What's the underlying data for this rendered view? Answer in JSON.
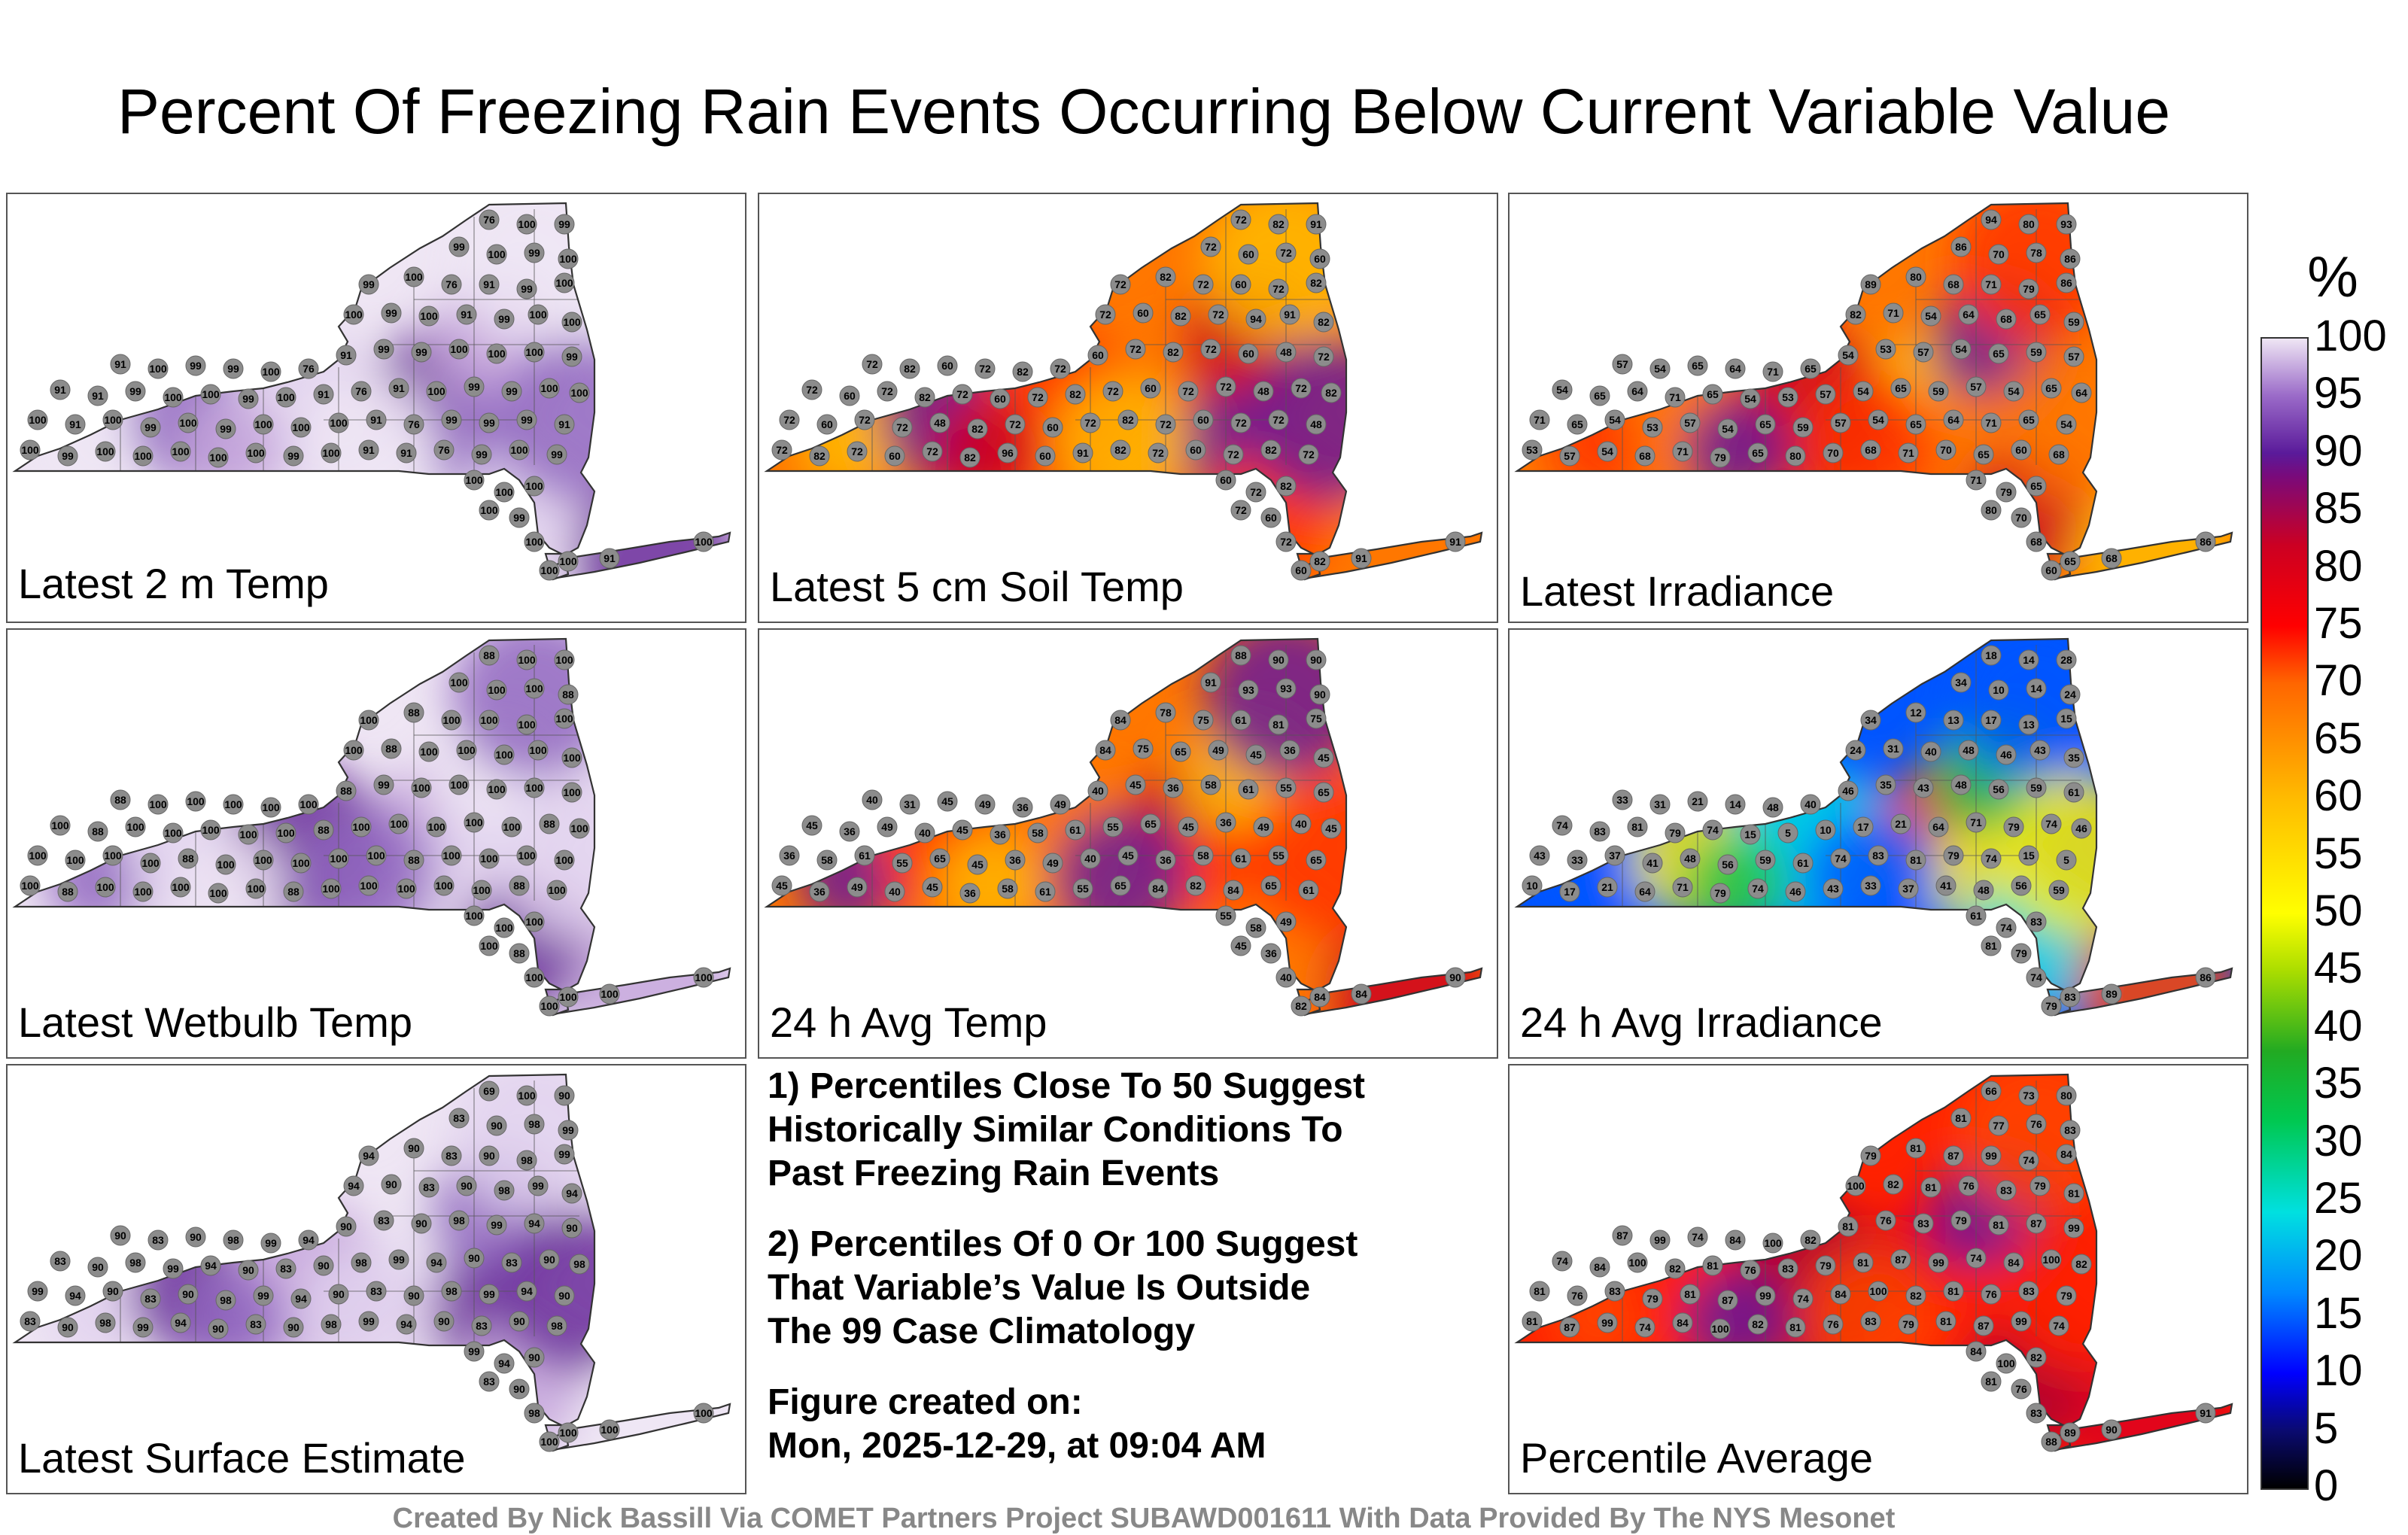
{
  "title": "Percent Of Freezing Rain Events Occurring Below Current Variable Value",
  "panels": [
    {
      "label": "Latest 2 m Temp",
      "scheme": "purple",
      "values": [
        76,
        100,
        99,
        99,
        100,
        99,
        100,
        99,
        100,
        76,
        91,
        99,
        100,
        100,
        99,
        100,
        91,
        99,
        100,
        100,
        91,
        100,
        99,
        99,
        100,
        76,
        91,
        99,
        99,
        100,
        100,
        100,
        99,
        91,
        91,
        99,
        100,
        100,
        99,
        100,
        91,
        76,
        91,
        100,
        99,
        99,
        100,
        100,
        100,
        91,
        100,
        99,
        100,
        99,
        100,
        100,
        100,
        91,
        76,
        99,
        99,
        99,
        91,
        100,
        99,
        100,
        100,
        100,
        100,
        100,
        99,
        100,
        91,
        91,
        76,
        99,
        100,
        99,
        100,
        100,
        100,
        100,
        99,
        100,
        100,
        100
      ],
      "island_values": [
        100,
        100,
        91,
        100
      ]
    },
    {
      "label": "Latest 5 cm Soil Temp",
      "scheme": "warm",
      "values": [
        72,
        82,
        91,
        72,
        60,
        72,
        60,
        72,
        82,
        72,
        60,
        72,
        82,
        72,
        60,
        82,
        72,
        94,
        91,
        82,
        72,
        82,
        60,
        72,
        82,
        72,
        60,
        72,
        82,
        72,
        60,
        48,
        72,
        72,
        60,
        72,
        82,
        72,
        60,
        72,
        82,
        72,
        60,
        72,
        72,
        48,
        72,
        82,
        72,
        60,
        72,
        72,
        48,
        82,
        72,
        60,
        72,
        82,
        72,
        60,
        72,
        72,
        48,
        72,
        82,
        72,
        60,
        72,
        82,
        96,
        60,
        91,
        82,
        72,
        60,
        72,
        82,
        72,
        60,
        72,
        82,
        72,
        60,
        72,
        82,
        72
      ],
      "island_values": [
        60,
        82,
        91,
        91
      ]
    },
    {
      "label": "Latest Irradiance",
      "scheme": "warm",
      "values": [
        94,
        80,
        93,
        86,
        70,
        78,
        86,
        89,
        80,
        68,
        71,
        79,
        86,
        82,
        71,
        54,
        64,
        68,
        65,
        59,
        57,
        54,
        65,
        64,
        71,
        65,
        54,
        53,
        57,
        54,
        65,
        59,
        57,
        54,
        65,
        64,
        71,
        65,
        54,
        53,
        57,
        54,
        65,
        59,
        57,
        54,
        65,
        64,
        71,
        65,
        54,
        53,
        57,
        54,
        65,
        59,
        57,
        54,
        65,
        64,
        71,
        65,
        54,
        53,
        57,
        54,
        68,
        71,
        79,
        65,
        80,
        70,
        68,
        71,
        70,
        65,
        60,
        68,
        71,
        79,
        65,
        80,
        70,
        68,
        71,
        70
      ],
      "island_values": [
        60,
        65,
        68,
        86
      ]
    },
    {
      "label": "Latest Wetbulb Temp",
      "scheme": "purple",
      "values": [
        88,
        100,
        100,
        100,
        100,
        100,
        88,
        100,
        88,
        100,
        100,
        100,
        100,
        100,
        88,
        100,
        100,
        100,
        100,
        100,
        88,
        100,
        100,
        100,
        100,
        100,
        88,
        99,
        100,
        100,
        100,
        100,
        100,
        100,
        88,
        100,
        100,
        100,
        100,
        100,
        88,
        100,
        100,
        100,
        100,
        100,
        88,
        100,
        100,
        100,
        100,
        100,
        88,
        100,
        100,
        100,
        100,
        100,
        88,
        100,
        100,
        100,
        100,
        100,
        88,
        100,
        100,
        100,
        100,
        100,
        88,
        100,
        100,
        100,
        100,
        100,
        88,
        100,
        100,
        100,
        100,
        100,
        88,
        100,
        100,
        100
      ],
      "island_values": [
        100,
        100,
        100,
        100
      ]
    },
    {
      "label": "24 h Avg Temp",
      "scheme": "warm",
      "values": [
        88,
        90,
        90,
        91,
        93,
        93,
        90,
        84,
        78,
        75,
        61,
        81,
        75,
        84,
        75,
        65,
        49,
        45,
        36,
        45,
        40,
        31,
        45,
        49,
        36,
        49,
        40,
        45,
        36,
        58,
        61,
        55,
        65,
        45,
        36,
        49,
        40,
        45,
        36,
        58,
        61,
        55,
        65,
        45,
        36,
        49,
        40,
        45,
        36,
        58,
        61,
        55,
        65,
        45,
        36,
        49,
        40,
        45,
        36,
        58,
        61,
        55,
        65,
        45,
        36,
        49,
        40,
        45,
        36,
        58,
        61,
        55,
        65,
        84,
        82,
        84,
        65,
        61,
        55,
        58,
        49,
        45,
        36,
        40,
        45,
        49
      ],
      "island_values": [
        82,
        84,
        84,
        90
      ]
    },
    {
      "label": "24 h Avg Irradiance",
      "scheme": "full",
      "values": [
        18,
        14,
        28,
        34,
        10,
        14,
        24,
        34,
        12,
        13,
        17,
        13,
        15,
        24,
        31,
        40,
        48,
        46,
        43,
        35,
        33,
        31,
        21,
        14,
        48,
        40,
        46,
        35,
        43,
        48,
        56,
        59,
        61,
        74,
        83,
        81,
        79,
        74,
        15,
        5,
        10,
        17,
        21,
        64,
        71,
        79,
        74,
        46,
        43,
        33,
        37,
        41,
        48,
        56,
        59,
        61,
        74,
        83,
        81,
        79,
        74,
        15,
        5,
        10,
        17,
        21,
        64,
        71,
        79,
        74,
        46,
        43,
        33,
        37,
        41,
        48,
        56,
        59,
        61,
        74,
        83,
        81,
        79,
        74,
        14,
        79
      ],
      "island_values": [
        79,
        83,
        89,
        86
      ]
    },
    {
      "label": "Latest Surface Estimate",
      "scheme": "purple",
      "values": [
        69,
        100,
        90,
        83,
        90,
        98,
        99,
        94,
        90,
        83,
        90,
        98,
        99,
        94,
        90,
        83,
        90,
        98,
        99,
        94,
        90,
        83,
        90,
        98,
        99,
        94,
        90,
        83,
        90,
        98,
        99,
        94,
        90,
        83,
        90,
        98,
        99,
        94,
        90,
        83,
        90,
        98,
        99,
        94,
        90,
        83,
        90,
        98,
        99,
        94,
        90,
        83,
        90,
        98,
        99,
        94,
        90,
        83,
        90,
        98,
        99,
        94,
        90,
        83,
        90,
        98,
        99,
        94,
        90,
        83,
        90,
        98,
        99,
        94,
        90,
        83,
        90,
        98,
        99,
        94,
        90,
        83,
        90,
        98,
        99,
        94
      ],
      "island_values": [
        100,
        100,
        100,
        100
      ]
    },
    {
      "label": "Percentile Average",
      "scheme": "red",
      "values": [
        66,
        73,
        80,
        81,
        77,
        76,
        83,
        79,
        81,
        87,
        99,
        74,
        84,
        100,
        82,
        81,
        76,
        83,
        79,
        81,
        87,
        99,
        74,
        84,
        100,
        82,
        81,
        76,
        83,
        79,
        81,
        87,
        99,
        74,
        84,
        100,
        82,
        81,
        76,
        83,
        79,
        81,
        87,
        99,
        74,
        84,
        100,
        82,
        81,
        76,
        83,
        79,
        81,
        87,
        99,
        74,
        84,
        100,
        82,
        81,
        76,
        83,
        79,
        81,
        87,
        99,
        74,
        84,
        100,
        82,
        81,
        76,
        83,
        79,
        81,
        87,
        99,
        74,
        84,
        100,
        82,
        81,
        76,
        83,
        79,
        81
      ],
      "island_values": [
        88,
        89,
        90,
        91
      ]
    }
  ],
  "notes": [
    [
      "1) Percentiles Close To 50 Suggest",
      "Historically Similar Conditions To",
      "Past Freezing Rain Events"
    ],
    [
      "2) Percentiles Of 0 Or 100 Suggest",
      "That Variable’s Value Is Outside",
      "The 99 Case Climatology"
    ],
    [
      "Figure created on:",
      "Mon, 2025-12-29, at 09:04 AM"
    ]
  ],
  "colorbar": {
    "unit": "%",
    "ticks": [
      "100",
      "95",
      "90",
      "85",
      "80",
      "75",
      "70",
      "65",
      "60",
      "55",
      "50",
      "45",
      "40",
      "35",
      "30",
      "25",
      "20",
      "15",
      "10",
      "5",
      "0"
    ]
  },
  "footer": "Created By Nick Bassill Via COMET Partners Project SUBAWD001611 With Data Provided By The NYS Mesonet"
}
